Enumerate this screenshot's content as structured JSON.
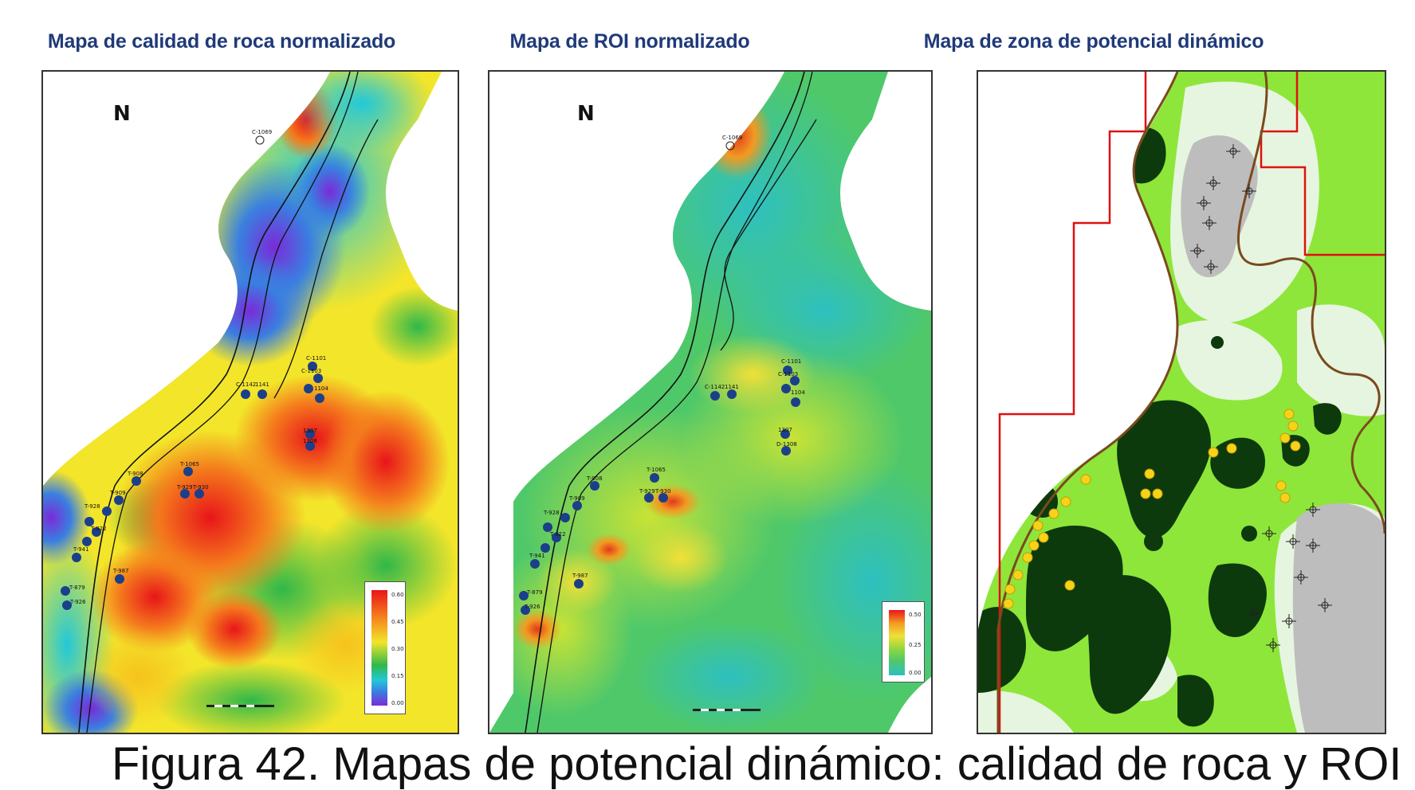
{
  "panels": [
    {
      "title": "Mapa de calidad de roca normalizado",
      "north_label": "N",
      "legend_ticks": [
        "0.60",
        "0.45",
        "0.30",
        "0.15",
        "0.00"
      ],
      "well_labels": [
        "C-1069",
        "C-1142",
        "1141",
        "C-1101",
        "C-1103",
        "1104",
        "1307",
        "1308",
        "T-1065",
        "T-929",
        "T-930",
        "T-908",
        "T-909",
        "T-928",
        "T-922",
        "T-941",
        "T-987",
        "T-879",
        "T-926"
      ]
    },
    {
      "title": "Mapa de ROI normalizado",
      "north_label": "N",
      "legend_ticks": [
        "0.50",
        "0.25",
        "0.00"
      ],
      "well_labels": [
        "C-1069",
        "C-1142",
        "1141",
        "C-1101",
        "C-1103",
        "1104",
        "1307",
        "D-1308",
        "T-1065",
        "T-929",
        "T-930",
        "T-908",
        "T-909",
        "T-928",
        "T-922",
        "T-941",
        "T-987",
        "T-879",
        "T-926"
      ]
    },
    {
      "title": "Mapa de zona de potencial dinámico"
    }
  ],
  "caption": "Figura 42. Mapas de potencial dinámico: calidad de roca y ROI",
  "colors": {
    "title": "#1f3a78",
    "well": "#1c3f8a",
    "fault": "#111111",
    "boundary_red": "#e01010",
    "boundary_brown": "#7a4a1e",
    "zone_light": "#e6f5df",
    "zone_medium": "#8ee63a",
    "zone_dark": "#0d3a0d",
    "zone_gray": "#bdbdbd",
    "producer_yellow": "#f7d21b"
  }
}
